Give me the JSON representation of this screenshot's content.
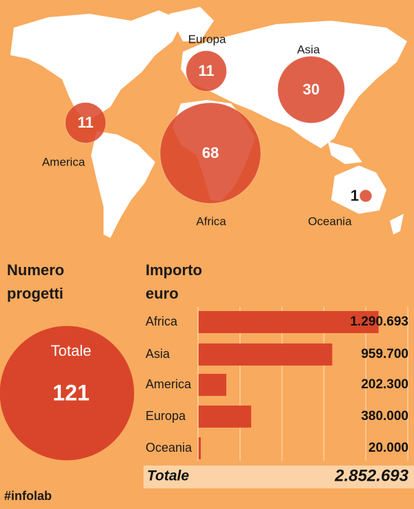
{
  "chart_data": [
    {
      "type": "bubble",
      "title": "Numero progetti",
      "categories": [
        "Europa",
        "Asia",
        "America",
        "Africa",
        "Oceania"
      ],
      "values": [
        11,
        30,
        11,
        68,
        1
      ],
      "color": "#d9452a",
      "total_label": "Totale",
      "total": 121
    },
    {
      "type": "bar",
      "title": "Importo euro",
      "categories": [
        "Africa",
        "Asia",
        "America",
        "Europa",
        "Oceania"
      ],
      "values": [
        1290693,
        959700,
        202300,
        380000,
        20000
      ],
      "value_labels": [
        "1.290.693",
        "959.700",
        "202.300",
        "380.000",
        "20.000"
      ],
      "color": "#d9452a",
      "xlim": [
        0,
        1500000
      ],
      "xticks": [
        0,
        300000,
        600000,
        900000,
        1200000,
        1500000
      ],
      "grid": true,
      "total_label": "Totale",
      "total": 2852693,
      "total_value_label": "2.852.693"
    }
  ],
  "footer": "#infolab"
}
